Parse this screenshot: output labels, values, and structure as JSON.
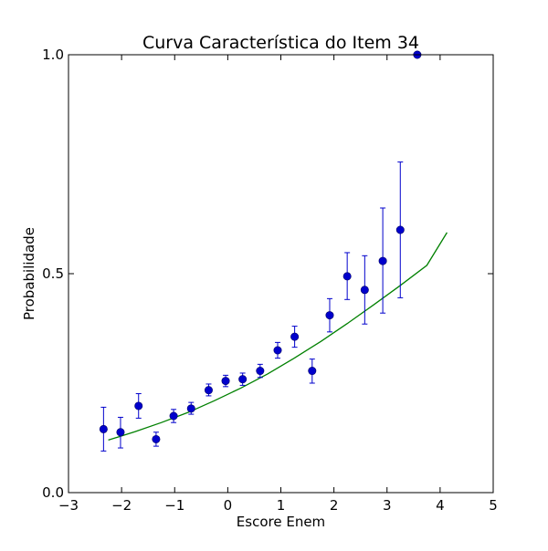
{
  "chart_data": {
    "type": "scatter",
    "title": "Curva Característica do Item 34",
    "xlabel": "Escore Enem",
    "ylabel": "Probabilidade",
    "xlim": [
      -3,
      5
    ],
    "ylim": [
      0.0,
      1.0
    ],
    "x_ticks": [
      -3,
      -2,
      -1,
      0,
      1,
      2,
      3,
      4,
      5
    ],
    "x_tick_labels": [
      "−3",
      "−2",
      "−1",
      "0",
      "1",
      "2",
      "3",
      "4",
      "5"
    ],
    "y_ticks": [
      0.0,
      0.5,
      1.0
    ],
    "y_tick_labels": [
      "0.0",
      "0.5",
      "1.0"
    ],
    "grid": false,
    "legend": "none",
    "series": [
      {
        "kind": "points_with_error_bars",
        "color": "#0000cc",
        "points": [
          {
            "x": -2.34,
            "y": 0.145,
            "lo": 0.095,
            "hi": 0.195
          },
          {
            "x": -2.02,
            "y": 0.138,
            "lo": 0.102,
            "hi": 0.172
          },
          {
            "x": -1.68,
            "y": 0.198,
            "lo": 0.17,
            "hi": 0.226
          },
          {
            "x": -1.35,
            "y": 0.122,
            "lo": 0.106,
            "hi": 0.138
          },
          {
            "x": -1.02,
            "y": 0.175,
            "lo": 0.16,
            "hi": 0.19
          },
          {
            "x": -0.69,
            "y": 0.192,
            "lo": 0.179,
            "hi": 0.206
          },
          {
            "x": -0.36,
            "y": 0.234,
            "lo": 0.221,
            "hi": 0.248
          },
          {
            "x": -0.04,
            "y": 0.255,
            "lo": 0.242,
            "hi": 0.268
          },
          {
            "x": 0.28,
            "y": 0.259,
            "lo": 0.245,
            "hi": 0.273
          },
          {
            "x": 0.61,
            "y": 0.278,
            "lo": 0.263,
            "hi": 0.293
          },
          {
            "x": 0.94,
            "y": 0.325,
            "lo": 0.307,
            "hi": 0.343
          },
          {
            "x": 1.26,
            "y": 0.356,
            "lo": 0.332,
            "hi": 0.38
          },
          {
            "x": 1.59,
            "y": 0.278,
            "lo": 0.25,
            "hi": 0.305
          },
          {
            "x": 1.92,
            "y": 0.405,
            "lo": 0.367,
            "hi": 0.443
          },
          {
            "x": 2.25,
            "y": 0.494,
            "lo": 0.441,
            "hi": 0.548
          },
          {
            "x": 2.58,
            "y": 0.463,
            "lo": 0.385,
            "hi": 0.541
          },
          {
            "x": 2.92,
            "y": 0.529,
            "lo": 0.41,
            "hi": 0.65
          },
          {
            "x": 3.25,
            "y": 0.6,
            "lo": 0.445,
            "hi": 0.755
          },
          {
            "x": 3.57,
            "y": 1.0,
            "lo": 1.0,
            "hi": 1.0
          }
        ]
      },
      {
        "kind": "fitted_curve",
        "color": "#008000",
        "x": [
          -2.25,
          -1.75,
          -1.25,
          -0.75,
          -0.25,
          0.25,
          0.75,
          1.25,
          1.75,
          2.25,
          2.75,
          3.25,
          3.75,
          4.13
        ],
        "y": [
          0.12,
          0.139,
          0.16,
          0.183,
          0.21,
          0.239,
          0.271,
          0.307,
          0.345,
          0.386,
          0.429,
          0.473,
          0.519,
          0.594
        ]
      }
    ]
  }
}
